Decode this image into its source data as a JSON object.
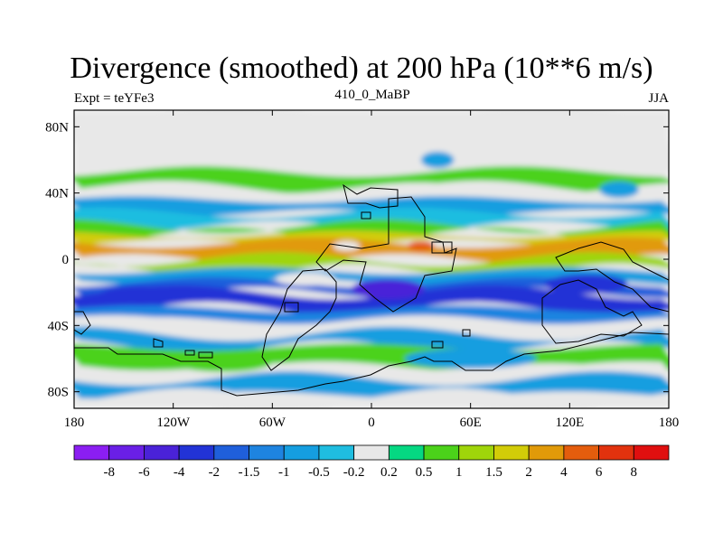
{
  "chart_data": {
    "type": "heatmap",
    "title": "Divergence (smoothed) at 200 hPa (10**6 m/s)",
    "subtitle_left": "Expt = teYFe3",
    "subtitle_center": "410_0_MaBP",
    "subtitle_right": "JJA",
    "x_ticks": [
      {
        "value": -180,
        "label": "180"
      },
      {
        "value": -120,
        "label": "120W"
      },
      {
        "value": -60,
        "label": "60W"
      },
      {
        "value": 0,
        "label": "0"
      },
      {
        "value": 60,
        "label": "60E"
      },
      {
        "value": 120,
        "label": "120E"
      },
      {
        "value": 180,
        "label": "180"
      }
    ],
    "y_ticks": [
      {
        "value": 80,
        "label": "80N"
      },
      {
        "value": 40,
        "label": "40N"
      },
      {
        "value": 0,
        "label": "0"
      },
      {
        "value": -40,
        "label": "40S"
      },
      {
        "value": -80,
        "label": "80S"
      }
    ],
    "xlim": [
      -180,
      180
    ],
    "ylim": [
      -90,
      90
    ],
    "colorbar": {
      "labels": [
        "-8",
        "-6",
        "-4",
        "-2",
        "-1.5",
        "-1",
        "-0.5",
        "-0.2",
        "0.2",
        "0.5",
        "1",
        "1.5",
        "2",
        "4",
        "6",
        "8"
      ],
      "colors": [
        "#8b1ef2",
        "#6a1fe6",
        "#4a22d8",
        "#2233d6",
        "#1f5fdb",
        "#1e84e0",
        "#159ee0",
        "#1fbde0",
        "#e8e8e8",
        "#05d882",
        "#4bd21a",
        "#9fd50a",
        "#d2cc08",
        "#e19a09",
        "#e45d0d",
        "#e2320e",
        "#e00f0f"
      ]
    },
    "bands": [
      {
        "lat_start": 90,
        "lat_end": 53,
        "value": 0
      },
      {
        "lat_start": 53,
        "lat_end": 43,
        "value": 0.7
      },
      {
        "lat_start": 43,
        "lat_end": 36,
        "value": 0
      },
      {
        "lat_start": 36,
        "lat_end": 28,
        "value": -0.7
      },
      {
        "lat_start": 28,
        "lat_end": 20,
        "value": -0.3
      },
      {
        "lat_start": 20,
        "lat_end": 15,
        "value": 0.6
      },
      {
        "lat_start": 15,
        "lat_end": 10,
        "value": 1.7
      },
      {
        "lat_start": 10,
        "lat_end": 0,
        "value": 2.5
      },
      {
        "lat_start": 0,
        "lat_end": -7,
        "value": 1.2
      },
      {
        "lat_start": -7,
        "lat_end": -14,
        "value": -0.8
      },
      {
        "lat_start": -14,
        "lat_end": -20,
        "value": -1.7
      },
      {
        "lat_start": -20,
        "lat_end": -30,
        "value": -2.5
      },
      {
        "lat_start": -30,
        "lat_end": -37,
        "value": -1.2
      },
      {
        "lat_start": -37,
        "lat_end": -45,
        "value": 0
      },
      {
        "lat_start": -45,
        "lat_end": -53,
        "value": -0.7
      },
      {
        "lat_start": -53,
        "lat_end": -65,
        "value": 0.7
      },
      {
        "lat_start": -65,
        "lat_end": -72,
        "value": 0
      },
      {
        "lat_start": -72,
        "lat_end": -82,
        "value": -0.7
      },
      {
        "lat_start": -82,
        "lat_end": -90,
        "value": 0
      }
    ],
    "blobs": [
      {
        "lon": 30,
        "lat": 8,
        "rlon": 8,
        "rlat": 3,
        "value": 5
      },
      {
        "lon": 10,
        "lat": -18,
        "rlon": 22,
        "rlat": 6,
        "value": -5
      },
      {
        "lon": 130,
        "lat": -15,
        "rlon": 25,
        "rlat": 6,
        "value": -3
      },
      {
        "lon": -140,
        "lat": -22,
        "rlon": 25,
        "rlat": 6,
        "value": -3
      },
      {
        "lon": 40,
        "lat": 60,
        "rlon": 10,
        "rlat": 5,
        "value": -0.7
      },
      {
        "lon": 60,
        "lat": -60,
        "rlon": 40,
        "rlat": 6,
        "value": -0.7
      },
      {
        "lon": -90,
        "lat": -62,
        "rlon": 30,
        "rlat": 6,
        "value": 0.6
      },
      {
        "lon": 150,
        "lat": 42,
        "rlon": 12,
        "rlat": 5,
        "value": -0.7
      },
      {
        "lon": -40,
        "lat": -12,
        "rlon": 18,
        "rlat": 4,
        "value": 0
      },
      {
        "lon": -15,
        "lat": 8,
        "rlon": 8,
        "rlat": 3,
        "value": 0
      }
    ]
  }
}
